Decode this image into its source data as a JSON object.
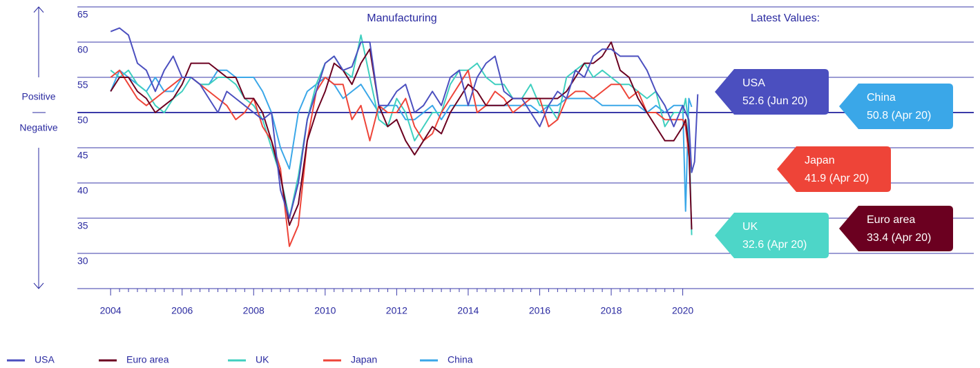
{
  "chart_data": {
    "type": "line",
    "title": "Manufacturing",
    "x": [
      2004.0,
      2004.25,
      2004.5,
      2004.75,
      2005.0,
      2005.25,
      2005.5,
      2005.75,
      2006.0,
      2006.25,
      2006.5,
      2006.75,
      2007.0,
      2007.25,
      2007.5,
      2007.75,
      2008.0,
      2008.25,
      2008.5,
      2008.75,
      2009.0,
      2009.25,
      2009.5,
      2009.75,
      2010.0,
      2010.25,
      2010.5,
      2010.75,
      2011.0,
      2011.25,
      2011.5,
      2011.75,
      2012.0,
      2012.25,
      2012.5,
      2012.75,
      2013.0,
      2013.25,
      2013.5,
      2013.75,
      2014.0,
      2014.25,
      2014.5,
      2014.75,
      2015.0,
      2015.25,
      2015.5,
      2015.75,
      2016.0,
      2016.25,
      2016.5,
      2016.75,
      2017.0,
      2017.25,
      2017.5,
      2017.75,
      2018.0,
      2018.25,
      2018.5,
      2018.75,
      2019.0,
      2019.25,
      2019.5,
      2019.75,
      2020.0,
      2020.08,
      2020.17,
      2020.25,
      2020.33,
      2020.42
    ],
    "series": [
      {
        "name": "USA",
        "color": "#4b4fbf",
        "values": [
          61.5,
          62,
          61,
          57,
          56,
          53,
          56,
          58,
          55,
          55,
          54,
          52,
          50,
          53,
          52,
          51,
          50,
          49,
          50,
          39,
          35,
          40,
          49,
          53,
          57,
          58,
          56,
          56.5,
          60,
          60,
          51,
          51,
          53,
          54,
          50,
          51,
          53,
          51,
          55,
          56,
          51,
          55,
          57,
          58,
          53,
          52,
          52,
          50,
          48,
          51,
          53,
          52,
          56,
          55,
          58,
          59,
          59,
          58,
          58,
          58,
          56,
          53,
          51,
          48,
          51,
          50,
          49,
          41.5,
          43,
          52.6
        ]
      },
      {
        "name": "Euro area",
        "color": "#6b0020",
        "values": [
          53,
          55,
          55,
          53,
          52,
          50,
          51,
          52,
          54,
          57,
          57,
          57,
          56,
          55,
          55,
          52,
          52,
          50,
          46,
          41,
          34,
          37,
          46,
          50,
          53,
          57,
          56,
          54,
          57,
          59,
          51,
          48,
          49,
          46,
          44,
          46,
          48,
          47,
          50,
          52,
          54,
          53,
          51,
          51,
          51,
          52,
          52,
          52,
          52,
          52,
          52,
          53,
          55,
          57,
          57,
          58,
          60,
          56,
          55,
          52,
          50,
          48,
          46,
          46,
          48,
          49,
          45,
          33.4,
          null,
          null
        ]
      },
      {
        "name": "UK",
        "color": "#3fcfbf",
        "values": [
          56,
          55,
          56,
          54,
          53,
          51,
          50,
          52,
          53,
          55,
          54,
          54,
          55,
          55,
          54,
          52,
          51,
          49,
          45,
          41,
          35,
          41,
          49,
          54,
          57,
          58,
          56,
          55,
          61,
          55,
          49,
          48,
          52,
          50,
          46,
          48,
          50,
          50,
          54,
          56,
          56,
          57,
          55,
          54,
          54,
          52,
          52,
          54,
          51,
          51,
          49,
          55,
          56,
          57,
          55,
          56,
          55,
          54,
          54,
          53,
          52,
          53,
          48,
          50,
          50,
          52,
          48,
          32.6,
          null,
          null
        ]
      },
      {
        "name": "Japan",
        "color": "#ee4438",
        "values": [
          55,
          56,
          54,
          52,
          51,
          52,
          53,
          54,
          55,
          55,
          54,
          53,
          52,
          51,
          49,
          50,
          52,
          48,
          46,
          42,
          31,
          34,
          46,
          53,
          55,
          54,
          54,
          49,
          51,
          46,
          51,
          50,
          50,
          52,
          48,
          46,
          47,
          50,
          52,
          54,
          56,
          50,
          51,
          53,
          52,
          50,
          51,
          52,
          52,
          48,
          49,
          52,
          53,
          53,
          52,
          53,
          54,
          54,
          52,
          53,
          50,
          50,
          49,
          49,
          49,
          48,
          44,
          41.9,
          null,
          null
        ]
      },
      {
        "name": "China",
        "color": "#3aa7e8",
        "values": [
          53,
          56,
          55,
          54,
          53,
          55,
          53,
          53,
          55,
          55,
          54,
          54,
          56,
          56,
          55,
          55,
          55,
          53,
          50,
          45,
          42,
          50,
          53,
          54,
          55,
          54,
          52,
          53,
          54,
          52,
          50,
          51,
          51,
          49,
          49,
          50,
          51,
          49,
          51,
          51,
          51,
          51,
          51,
          51,
          51,
          51,
          51,
          51,
          50,
          51,
          51,
          52,
          52,
          52,
          52,
          51,
          51,
          51,
          51,
          51,
          50,
          51,
          50,
          51,
          51,
          36,
          52,
          50.8,
          null,
          null
        ]
      }
    ],
    "xlim": [
      2003.07,
      2020.8
    ],
    "xticks": [
      2004,
      2006,
      2008,
      2010,
      2012,
      2014,
      2016,
      2018,
      2020
    ],
    "ylim": [
      25,
      65
    ],
    "yticks": [
      30,
      35,
      40,
      45,
      50,
      55,
      60,
      65
    ],
    "grid": true,
    "direction_labels": [
      "Positive",
      "Negative"
    ],
    "latest_values": {
      "title": "Latest Values:",
      "items": [
        {
          "name": "USA",
          "label": "52.6 (Jun 20)",
          "color": "#4b4fbf"
        },
        {
          "name": "China",
          "label": "50.8 (Apr 20)",
          "color": "#3aa7e8"
        },
        {
          "name": "Japan",
          "label": "41.9 (Apr 20)",
          "color": "#ee4438"
        },
        {
          "name": "Euro area",
          "label": "33.4 (Apr 20)",
          "color": "#6b0020"
        },
        {
          "name": "UK",
          "label": "32.6 (Apr 20)",
          "color": "#4dd6c8"
        }
      ]
    }
  }
}
